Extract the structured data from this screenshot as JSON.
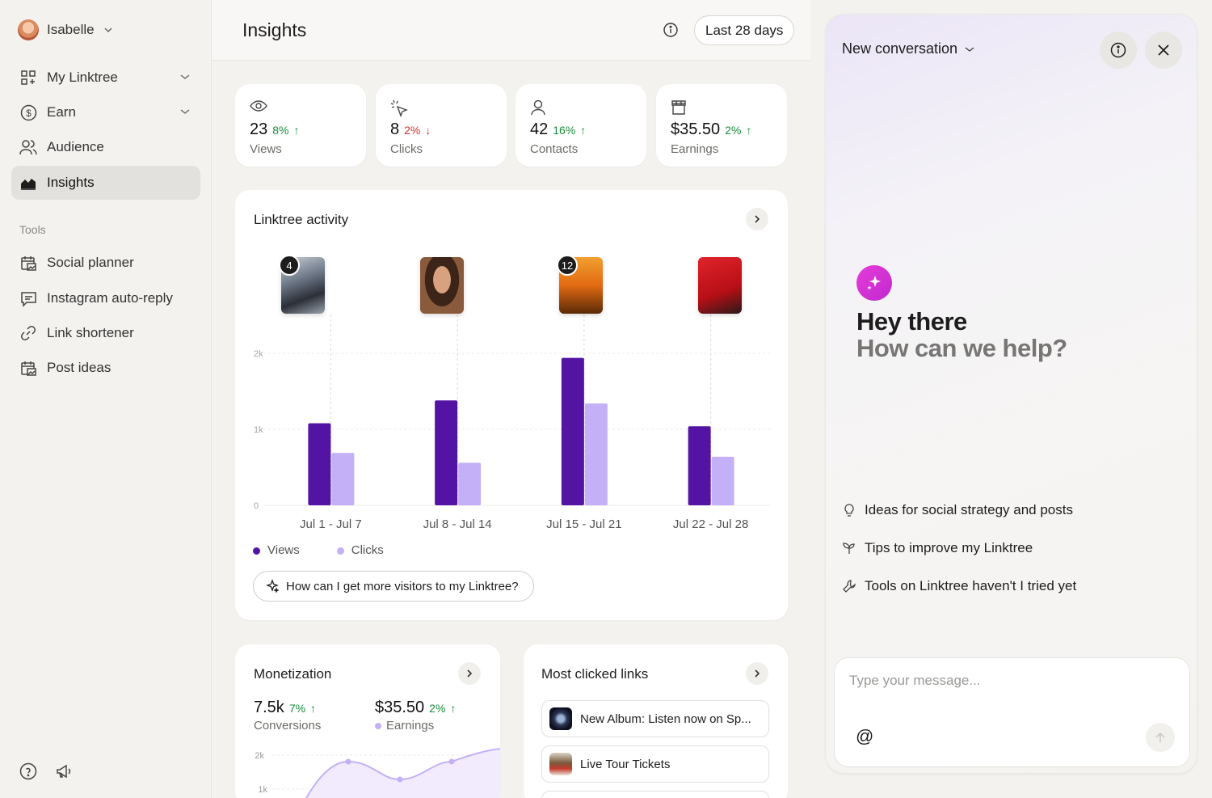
{
  "sidebar": {
    "user_name": "Isabelle",
    "items": [
      {
        "label": "My Linktree"
      },
      {
        "label": "Earn"
      },
      {
        "label": "Audience"
      },
      {
        "label": "Insights"
      }
    ],
    "tools_label": "Tools",
    "tools": [
      {
        "label": "Social planner"
      },
      {
        "label": "Instagram auto-reply"
      },
      {
        "label": "Link shortener"
      },
      {
        "label": "Post ideas"
      }
    ]
  },
  "header": {
    "title": "Insights",
    "range": "Last 28 days"
  },
  "stats": [
    {
      "value": "23",
      "change": "8%",
      "direction": "up",
      "label": "Views"
    },
    {
      "value": "8",
      "change": "2%",
      "direction": "down",
      "label": "Clicks"
    },
    {
      "value": "42",
      "change": "16%",
      "direction": "up",
      "label": "Contacts"
    },
    {
      "value": "$35.50",
      "change": "2%",
      "direction": "up",
      "label": "Earnings"
    }
  ],
  "activity": {
    "title": "Linktree activity",
    "badges": [
      "4",
      "12"
    ],
    "ask_prompt": "How can I get more visitors to my Linktree?"
  },
  "chart_data": {
    "type": "bar",
    "categories": [
      "Jul 1 - Jul 7",
      "Jul 8 - Jul 14",
      "Jul 15 - Jul 21",
      "Jul 22 - Jul 28"
    ],
    "series": [
      {
        "name": "Views",
        "values": [
          1080,
          1380,
          1940,
          1040
        ],
        "color": "#5414a3"
      },
      {
        "name": "Clicks",
        "values": [
          690,
          560,
          1340,
          640
        ],
        "color": "#c3b0f7"
      }
    ],
    "y_ticks": [
      "0",
      "1k",
      "2k"
    ],
    "ylim": [
      0,
      2000
    ],
    "legend": "bottom-left",
    "grid": true
  },
  "monetization": {
    "title": "Monetization",
    "conversions_value": "7.5k",
    "conversions_change": "7%",
    "conversions_label": "Conversions",
    "earnings_value": "$35.50",
    "earnings_change": "2%",
    "earnings_label": "Earnings",
    "y_ticks": [
      "2k",
      "1k"
    ]
  },
  "links": {
    "title": "Most clicked links",
    "items": [
      {
        "label": "New Album: Listen now on Sp..."
      },
      {
        "label": "Live Tour Tickets"
      }
    ]
  },
  "assistant": {
    "title": "New conversation",
    "greeting": "Hey there",
    "subgreeting": "How can we help?",
    "suggestions": [
      {
        "label": "Ideas for social strategy and posts",
        "icon": "lightbulb-icon"
      },
      {
        "label": "Tips to improve my Linktree",
        "icon": "sprout-icon"
      },
      {
        "label": "Tools on Linktree haven't I tried yet",
        "icon": "wrench-icon"
      }
    ],
    "placeholder": "Type your message...",
    "mention_symbol": "@"
  },
  "colors": {
    "views": "#5414a3",
    "clicks": "#c3b0f7",
    "up": "#1a8a3a",
    "down": "#d6312c",
    "accent": "#d433d0"
  }
}
